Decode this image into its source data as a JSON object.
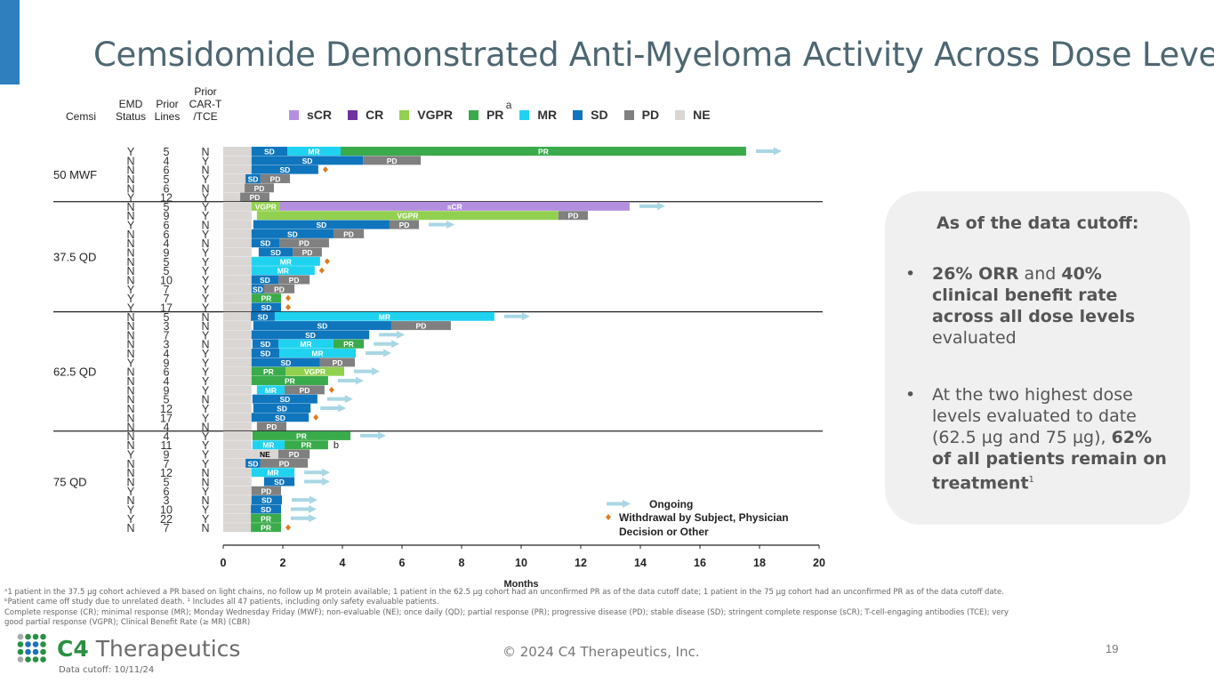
{
  "title": "Cemsidomide Demonstrated Anti-Myeloma Activity Across Dose Levels",
  "column_headers": {
    "cemsi": "Cemsi",
    "emd": "EMD Status",
    "lines": "Prior Lines",
    "cart": "Prior CAR-T /TCE"
  },
  "legend": [
    {
      "label": "sCR",
      "color": "#b48fe0"
    },
    {
      "label": "CR",
      "color": "#7030a0"
    },
    {
      "label": "VGPR",
      "color": "#92d050"
    },
    {
      "label": "PR",
      "color": "#3aab4a",
      "sup": "a"
    },
    {
      "label": "MR",
      "color": "#1fd3f0"
    },
    {
      "label": "SD",
      "color": "#0f75bc"
    },
    {
      "label": "PD",
      "color": "#808080"
    },
    {
      "label": "NE",
      "color": "#d9d6d4"
    }
  ],
  "markers": {
    "ongoing": "Ongoing",
    "withdrawal": "Withdrawal by Subject, Physician Decision or Other",
    "ongoing_color": "#a9d7e4",
    "withdrawal_color": "#e07b1a"
  },
  "chart_data": {
    "type": "swimmer",
    "xlabel": "Months",
    "xlim": [
      0,
      20
    ],
    "xticks": [
      0,
      2,
      4,
      6,
      8,
      10,
      12,
      14,
      16,
      18,
      20
    ],
    "baseline_ne_end": 0.95,
    "groups": [
      {
        "label": "50 MWF",
        "rows": [
          {
            "emd": "Y",
            "lines": "5",
            "cart": "N",
            "seg": [
              [
                "SD",
                0.95,
                2.15
              ],
              [
                "MR",
                2.15,
                3.94
              ],
              [
                "PR",
                3.94,
                17.55
              ]
            ],
            "ongoing": true
          },
          {
            "emd": "N",
            "lines": "4",
            "cart": "Y",
            "seg": [
              [
                "SD",
                0.95,
                4.69
              ],
              [
                "PD",
                4.69,
                6.63
              ]
            ]
          },
          {
            "emd": "N",
            "lines": "6",
            "cart": "N",
            "seg": [
              [
                "SD",
                0.95,
                3.19
              ]
            ],
            "withdrawal": true
          },
          {
            "emd": "N",
            "lines": "5",
            "cart": "Y",
            "seg": [
              [
                "SD",
                0.75,
                1.25
              ],
              [
                "PD",
                1.25,
                2.24
              ]
            ]
          },
          {
            "emd": "N",
            "lines": "6",
            "cart": "N",
            "seg": [
              [
                "PD",
                0.72,
                1.7
              ]
            ]
          },
          {
            "emd": "Y",
            "lines": "12",
            "cart": "Y",
            "seg": [
              [
                "PD",
                0.57,
                1.55
              ]
            ]
          }
        ]
      },
      {
        "label": "37.5 QD",
        "rows": [
          {
            "emd": "N",
            "lines": "5",
            "cart": "Y",
            "seg": [
              [
                "VGPR",
                0.95,
                1.9
              ],
              [
                "sCR",
                1.9,
                13.64
              ]
            ],
            "ongoing": true
          },
          {
            "emd": "N",
            "lines": "9",
            "cart": "Y",
            "seg": [
              [
                "VGPR",
                1.13,
                11.25
              ],
              [
                "PD",
                11.25,
                12.24
              ]
            ]
          },
          {
            "emd": "Y",
            "lines": "6",
            "cart": "N",
            "seg": [
              [
                "SD",
                1.01,
                5.58
              ],
              [
                "PD",
                5.58,
                6.57
              ]
            ],
            "ongoing": true
          },
          {
            "emd": "N",
            "lines": "6",
            "cart": "Y",
            "seg": [
              [
                "SD",
                0.95,
                3.7
              ],
              [
                "PD",
                3.7,
                4.72
              ]
            ]
          },
          {
            "emd": "N",
            "lines": "4",
            "cart": "N",
            "seg": [
              [
                "SD",
                0.95,
                1.88
              ],
              [
                "PD",
                1.88,
                3.55
              ]
            ]
          },
          {
            "emd": "N",
            "lines": "9",
            "cart": "Y",
            "seg": [
              [
                "SD",
                1.19,
                2.33
              ],
              [
                "PD",
                2.33,
                3.31
              ]
            ]
          },
          {
            "emd": "N",
            "lines": "5",
            "cart": "Y",
            "seg": [
              [
                "MR",
                0.95,
                3.25
              ]
            ],
            "withdrawal": true
          },
          {
            "emd": "N",
            "lines": "5",
            "cart": "Y",
            "seg": [
              [
                "MR",
                0.95,
                3.07
              ]
            ],
            "withdrawal": true
          },
          {
            "emd": "N",
            "lines": "10",
            "cart": "Y",
            "seg": [
              [
                "SD",
                0.95,
                1.85
              ],
              [
                "PD",
                1.85,
                2.9
              ]
            ]
          },
          {
            "emd": "Y",
            "lines": "7",
            "cart": "Y",
            "seg": [
              [
                "SD",
                0.95,
                1.37
              ],
              [
                "PD",
                1.37,
                2.39
              ]
            ]
          },
          {
            "emd": "Y",
            "lines": "7",
            "cart": "Y",
            "seg": [
              [
                "PR",
                0.95,
                1.94
              ]
            ],
            "withdrawal": true
          },
          {
            "emd": "Y",
            "lines": "17",
            "cart": "Y",
            "seg": [
              [
                "SD",
                0.95,
                1.94
              ]
            ],
            "withdrawal": true
          }
        ]
      },
      {
        "label": "62.5 QD",
        "rows": [
          {
            "emd": "N",
            "lines": "5",
            "cart": "N",
            "seg": [
              [
                "SD",
                0.93,
                1.73
              ],
              [
                "MR",
                1.73,
                9.1
              ]
            ],
            "ongoing": true
          },
          {
            "emd": "N",
            "lines": "3",
            "cart": "N",
            "seg": [
              [
                "SD",
                1.01,
                5.64
              ],
              [
                "PD",
                5.64,
                7.64
              ]
            ]
          },
          {
            "emd": "N",
            "lines": "7",
            "cart": "Y",
            "seg": [
              [
                "SD",
                0.95,
                4.9
              ]
            ],
            "ongoing": true
          },
          {
            "emd": "N",
            "lines": "3",
            "cart": "N",
            "seg": [
              [
                "SD",
                0.98,
                1.85
              ],
              [
                "MR",
                1.85,
                3.7
              ],
              [
                "PR",
                3.7,
                4.72
              ]
            ],
            "ongoing": true
          },
          {
            "emd": "N",
            "lines": "4",
            "cart": "Y",
            "seg": [
              [
                "SD",
                0.95,
                1.88
              ],
              [
                "MR",
                1.88,
                4.45
              ]
            ],
            "ongoing": true
          },
          {
            "emd": "Y",
            "lines": "9",
            "cart": "Y",
            "seg": [
              [
                "SD",
                0.95,
                3.25
              ],
              [
                "PD",
                3.25,
                4.42
              ]
            ]
          },
          {
            "emd": "N",
            "lines": "6",
            "cart": "Y",
            "seg": [
              [
                "PR",
                0.95,
                2.09
              ],
              [
                "VGPR",
                2.09,
                4.06
              ]
            ],
            "ongoing": true
          },
          {
            "emd": "N",
            "lines": "4",
            "cart": "Y",
            "seg": [
              [
                "PR",
                0.95,
                3.52
              ]
            ],
            "ongoing": true
          },
          {
            "emd": "N",
            "lines": "9",
            "cart": "Y",
            "seg": [
              [
                "MR",
                1.13,
                2.06
              ],
              [
                "PD",
                2.06,
                3.4
              ]
            ],
            "withdrawal": true
          },
          {
            "emd": "N",
            "lines": "5",
            "cart": "N",
            "seg": [
              [
                "SD",
                0.98,
                3.16
              ]
            ],
            "ongoing": true
          },
          {
            "emd": "N",
            "lines": "12",
            "cart": "Y",
            "seg": [
              [
                "SD",
                1.01,
                2.93
              ]
            ],
            "ongoing": true
          },
          {
            "emd": "N",
            "lines": "17",
            "cart": "Y",
            "seg": [
              [
                "SD",
                0.95,
                2.87
              ]
            ],
            "withdrawal": true
          },
          {
            "emd": "N",
            "lines": "4",
            "cart": "N",
            "seg": [
              [
                "PD",
                1.13,
                2.12
              ]
            ]
          }
        ]
      },
      {
        "label": "75 QD",
        "rows": [
          {
            "emd": "N",
            "lines": "4",
            "cart": "Y",
            "seg": [
              [
                "PR",
                0.98,
                4.27
              ]
            ],
            "ongoing": true
          },
          {
            "emd": "N",
            "lines": "11",
            "cart": "Y",
            "seg": [
              [
                "MR",
                0.98,
                2.06
              ],
              [
                "PR",
                2.06,
                3.52
              ]
            ],
            "note": "b"
          },
          {
            "emd": "Y",
            "lines": "9",
            "cart": "Y",
            "seg": [
              [
                "NE",
                0.95,
                1.85
              ],
              [
                "PD",
                1.85,
                2.9
              ]
            ]
          },
          {
            "emd": "N",
            "lines": "7",
            "cart": "Y",
            "seg": [
              [
                "SD",
                0.75,
                1.25
              ],
              [
                "PD",
                1.25,
                2.84
              ]
            ]
          },
          {
            "emd": "N",
            "lines": "12",
            "cart": "N",
            "seg": [
              [
                "MR",
                0.95,
                2.39
              ]
            ],
            "ongoing": true
          },
          {
            "emd": "N",
            "lines": "5",
            "cart": "N",
            "seg": [
              [
                "SD",
                1.37,
                2.39
              ]
            ],
            "ongoing": true
          },
          {
            "emd": "Y",
            "lines": "6",
            "cart": "Y",
            "seg": [
              [
                "PD",
                0.95,
                1.94
              ]
            ]
          },
          {
            "emd": "N",
            "lines": "3",
            "cart": "N",
            "seg": [
              [
                "SD",
                0.95,
                1.97
              ]
            ],
            "ongoing": true
          },
          {
            "emd": "Y",
            "lines": "10",
            "cart": "Y",
            "seg": [
              [
                "SD",
                0.93,
                1.94
              ]
            ],
            "ongoing": true
          },
          {
            "emd": "Y",
            "lines": "22",
            "cart": "Y",
            "seg": [
              [
                "PR",
                0.93,
                1.94
              ]
            ],
            "ongoing": true
          },
          {
            "emd": "N",
            "lines": "7",
            "cart": "N",
            "seg": [
              [
                "PR",
                0.93,
                1.94
              ]
            ],
            "withdrawal": true
          }
        ]
      }
    ]
  },
  "callout": {
    "title": "As of the data cutoff:",
    "bullet1": {
      "b1": "26% ORR",
      "t1": " and ",
      "b2": "40% clinical benefit rate across all dose levels",
      "t2": " evaluated"
    },
    "bullet2": {
      "t1": "At the two highest dose levels evaluated to date (62.5 µg and 75 µg), ",
      "b1": "62% of all patients remain on treatment",
      "sup": "1"
    }
  },
  "footnotes": [
    "ᵃ1 patient in the 37.5 µg cohort achieved a PR based on light chains, no follow up M protein available; 1 patient in the 62.5 µg cohort had an unconfirmed PR as of the data cutoff date; 1 patient in the 75 µg cohort had an unconfirmed PR as of the data cutoff date.",
    "ᵇPatient came off study due to unrelated death. ¹ Includes all 47 patients, including only safety evaluable patients.",
    "Complete response (CR); minimal response (MR); Monday Wednesday Friday (MWF); non-evaluable (NE); once daily (QD); partial response (PR); progressive disease (PD); stable disease (SD); stringent complete response (sCR); T-cell-engaging   antibodies (TCE); very",
    "good partial response (VGPR); Clinical Benefit Rate (≥ MR) (CBR)"
  ],
  "logo": {
    "brand": "C4",
    "name": " Therapeutics"
  },
  "data_cutoff": "Data cutoff: 10/11/24",
  "copyright": "© 2024 C4 Therapeutics, Inc.",
  "page_number": "19"
}
